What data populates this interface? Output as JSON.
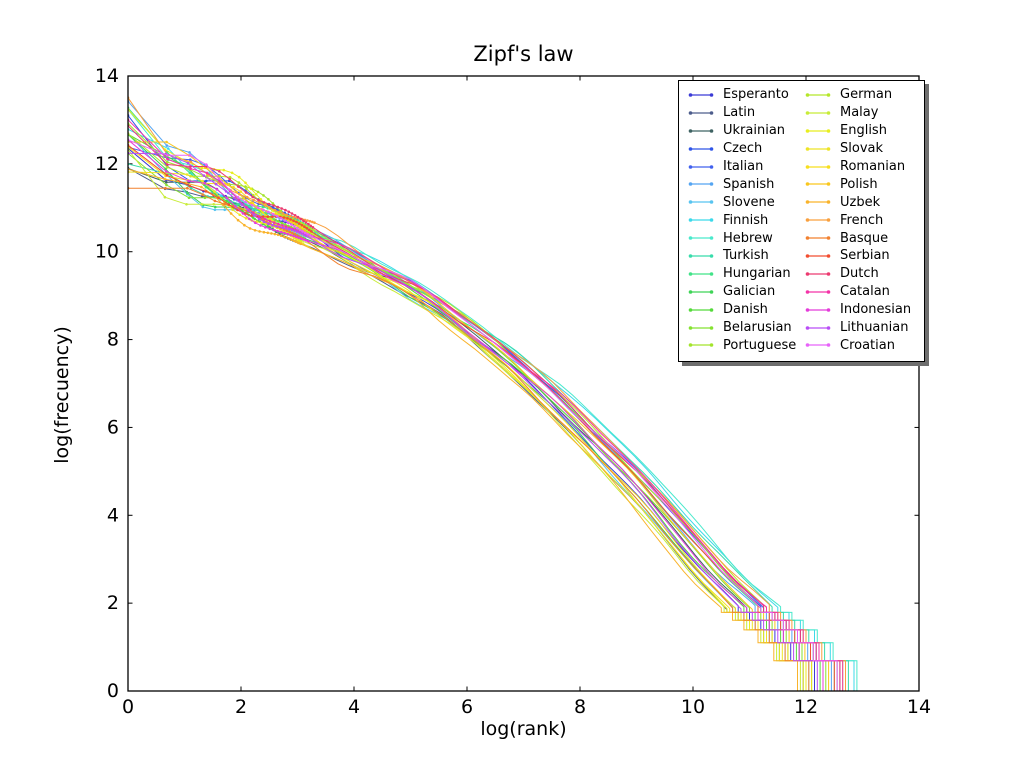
{
  "figure": {
    "background": "#ffffff",
    "spine_color": "#000000",
    "tick_label_color": "#000000"
  },
  "chart_data": {
    "type": "line",
    "title": "Zipf's law",
    "xlabel": "log(rank)",
    "ylabel": "log(frecuency)",
    "xlim": [
      0,
      14
    ],
    "ylim": [
      0,
      14
    ],
    "xticks": [
      0,
      2,
      4,
      6,
      8,
      10,
      12,
      14
    ],
    "yticks": [
      0,
      2,
      4,
      6,
      8,
      10,
      12,
      14
    ],
    "grid": false,
    "legend": {
      "position": "upper right",
      "columns": 2,
      "rows": 15
    },
    "base_curve": [
      [
        0,
        12.7
      ],
      [
        0.69,
        12.05
      ],
      [
        1.1,
        11.78
      ],
      [
        1.39,
        11.58
      ],
      [
        1.61,
        11.44
      ],
      [
        1.79,
        11.33
      ],
      [
        2.08,
        11.15
      ],
      [
        2.3,
        11.0
      ],
      [
        2.71,
        10.74
      ],
      [
        3.0,
        10.56
      ],
      [
        3.4,
        10.3
      ],
      [
        4.0,
        9.92
      ],
      [
        4.5,
        9.6
      ],
      [
        5.0,
        9.24
      ],
      [
        5.5,
        8.84
      ],
      [
        6.0,
        8.4
      ],
      [
        6.5,
        7.92
      ],
      [
        7.0,
        7.4
      ],
      [
        7.5,
        6.84
      ],
      [
        8.0,
        6.24
      ],
      [
        8.5,
        5.6
      ],
      [
        9.0,
        4.94
      ],
      [
        9.5,
        4.24
      ],
      [
        10.0,
        3.5
      ],
      [
        10.6,
        2.62
      ],
      [
        11.2,
        1.9
      ]
    ],
    "tail_steps": [
      [
        1.35,
        1.79
      ],
      [
        1.15,
        1.61
      ],
      [
        0.95,
        1.39
      ],
      [
        0.7,
        1.1
      ],
      [
        0.42,
        0.69
      ]
    ],
    "series": [
      {
        "name": "Esperanto",
        "color": "#3b3bd6",
        "y_start": 12.5,
        "x_end": 12.15
      },
      {
        "name": "Latin",
        "color": "#4d5d8c",
        "y_start": 12.05,
        "x_end": 11.95
      },
      {
        "name": "Ukrainian",
        "color": "#3f6363",
        "y_start": 12.25,
        "x_end": 12.3
      },
      {
        "name": "Czech",
        "color": "#2f55e8",
        "y_start": 13.05,
        "x_end": 12.55
      },
      {
        "name": "Italian",
        "color": "#4161ee",
        "y_start": 12.9,
        "x_end": 12.6
      },
      {
        "name": "Spanish",
        "color": "#55a5f2",
        "y_start": 13.1,
        "x_end": 12.45
      },
      {
        "name": "Slovene",
        "color": "#58c4f0",
        "y_start": 12.3,
        "x_end": 12.05
      },
      {
        "name": "Finnish",
        "color": "#3cd9ea",
        "y_start": 12.65,
        "x_end": 12.85
      },
      {
        "name": "Hebrew",
        "color": "#4ae9cc",
        "y_start": 12.75,
        "x_end": 12.9
      },
      {
        "name": "Turkish",
        "color": "#38dcab",
        "y_start": 12.4,
        "x_end": 12.75
      },
      {
        "name": "Hungarian",
        "color": "#41e388",
        "y_start": 12.85,
        "x_end": 12.5
      },
      {
        "name": "Galician",
        "color": "#3fd457",
        "y_start": 12.2,
        "x_end": 12.1
      },
      {
        "name": "Danish",
        "color": "#55da3c",
        "y_start": 12.55,
        "x_end": 12.25
      },
      {
        "name": "Belarusian",
        "color": "#85e231",
        "y_start": 12.35,
        "x_end": 12.35
      },
      {
        "name": "Portuguese",
        "color": "#a3e42c",
        "y_start": 13.0,
        "x_end": 12.55
      },
      {
        "name": "German",
        "color": "#b5e62a",
        "y_start": 12.95,
        "x_end": 12.65
      },
      {
        "name": "Malay",
        "color": "#c8ec38",
        "y_start": 12.1,
        "x_end": 11.9
      },
      {
        "name": "English",
        "color": "#e8ee1f",
        "y_start": 13.4,
        "x_end": 11.95
      },
      {
        "name": "Slovak",
        "color": "#eee426",
        "y_start": 12.15,
        "x_end": 12.0
      },
      {
        "name": "Romanian",
        "color": "#f7df1d",
        "y_start": 12.6,
        "x_end": 12.1
      },
      {
        "name": "Polish",
        "color": "#f9c71f",
        "y_start": 12.98,
        "x_end": 12.4
      },
      {
        "name": "Uzbek",
        "color": "#f9b32b",
        "y_start": 11.95,
        "x_end": 11.85
      },
      {
        "name": "French",
        "color": "#f9a03f",
        "y_start": 13.2,
        "x_end": 12.7
      },
      {
        "name": "Basque",
        "color": "#f2812f",
        "y_start": 12.0,
        "x_end": 12.05
      },
      {
        "name": "Serbian",
        "color": "#f24e30",
        "y_start": 12.45,
        "x_end": 12.5
      },
      {
        "name": "Dutch",
        "color": "#ec3a70",
        "y_start": 13.15,
        "x_end": 12.6
      },
      {
        "name": "Catalan",
        "color": "#f433a8",
        "y_start": 12.7,
        "x_end": 12.65
      },
      {
        "name": "Indonesian",
        "color": "#e43cda",
        "y_start": 12.28,
        "x_end": 12.3
      },
      {
        "name": "Lithuanian",
        "color": "#b94df6",
        "y_start": 12.58,
        "x_end": 12.2
      },
      {
        "name": "Croatian",
        "color": "#e763f9",
        "y_start": 12.82,
        "x_end": 12.55
      }
    ]
  }
}
